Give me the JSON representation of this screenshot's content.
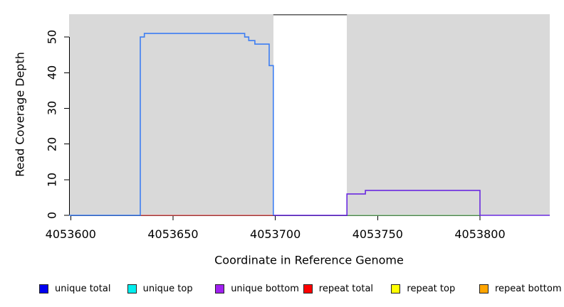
{
  "chart_data": {
    "type": "line",
    "title": "",
    "xlabel": "Coordinate in Reference Genome",
    "ylabel": "Read Coverage Depth",
    "xlim": [
      4053599.2,
      4053834.1
    ],
    "ylim": [
      0,
      56.4
    ],
    "x_ticks": [
      4053600,
      4053650,
      4053700,
      4053750,
      4053800
    ],
    "y_ticks": [
      0,
      10,
      20,
      30,
      40,
      50
    ],
    "grid": false,
    "legend_position": "bottom",
    "background": {
      "shaded_color": "#d9d9d9",
      "shaded_regions": [
        {
          "start": 4053599.2,
          "end": 4053699
        },
        {
          "start": 4053735,
          "end": 4053834.1
        }
      ],
      "gap_region": {
        "start": 4053699,
        "end": 4053735,
        "top_border_color": "#595959"
      }
    },
    "series": [
      {
        "name": "repeat total",
        "color": "#ee5555",
        "width": 1.3,
        "points": [
          [
            4053634,
            0
          ],
          [
            4053699,
            0
          ]
        ]
      },
      {
        "name": "baseline green",
        "color": "#7cc87c",
        "width": 1.3,
        "points": [
          [
            4053735,
            0
          ],
          [
            4053800,
            0
          ]
        ]
      },
      {
        "name": "unique bottom",
        "color": "#6a2be0",
        "width": 1.6,
        "points": [
          [
            4053699,
            0
          ],
          [
            4053735,
            0
          ],
          [
            4053735,
            6
          ],
          [
            4053744,
            6
          ],
          [
            4053744,
            7
          ],
          [
            4053800,
            7
          ],
          [
            4053800,
            0
          ],
          [
            4053834.1,
            0
          ]
        ]
      },
      {
        "name": "unique total",
        "color": "#3d7ef2",
        "width": 1.6,
        "points": [
          [
            4053599.2,
            0
          ],
          [
            4053634,
            0
          ],
          [
            4053634,
            50
          ],
          [
            4053636,
            50
          ],
          [
            4053636,
            51
          ],
          [
            4053685,
            51
          ],
          [
            4053685,
            50
          ],
          [
            4053687,
            50
          ],
          [
            4053687,
            49
          ],
          [
            4053690,
            49
          ],
          [
            4053690,
            48
          ],
          [
            4053697,
            48
          ],
          [
            4053697,
            42
          ],
          [
            4053699,
            42
          ],
          [
            4053699,
            0
          ]
        ]
      }
    ]
  },
  "legend": {
    "items": [
      {
        "label": "unique total",
        "color": "#0000f0"
      },
      {
        "label": "unique top",
        "color": "#00eeee"
      },
      {
        "label": "unique bottom",
        "color": "#a020f0"
      },
      {
        "label": "repeat total",
        "color": "#ff0000"
      },
      {
        "label": "repeat top",
        "color": "#ffff00"
      },
      {
        "label": "repeat bottom",
        "color": "#ffa500"
      }
    ]
  }
}
